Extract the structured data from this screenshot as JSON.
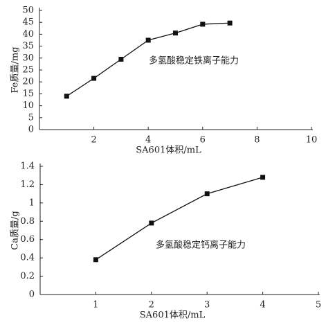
{
  "chart_data": [
    {
      "type": "line",
      "x_label": "SA601体积/mL",
      "y_label": "Fe质量/mg",
      "annotation": "多氢酸稳定铁离子能力",
      "x": [
        1,
        2,
        3,
        4,
        5,
        6,
        7
      ],
      "values": [
        14,
        21.5,
        29.5,
        37.5,
        40.5,
        44.2,
        44.7
      ],
      "color": "#111111",
      "xlim": [
        0,
        10
      ],
      "xticks": [
        2,
        4,
        6,
        8,
        10
      ],
      "ylim": [
        0,
        50
      ],
      "yticks": [
        0,
        5,
        10,
        15,
        20,
        25,
        30,
        35,
        40,
        45,
        50
      ]
    },
    {
      "type": "line",
      "x_label": "SA601体积/mL",
      "y_label": "Ca质量/g",
      "annotation": "多氢酸稳定钙离子能力",
      "x": [
        1,
        2,
        3,
        4
      ],
      "values": [
        0.38,
        0.78,
        1.1,
        1.28
      ],
      "color": "#111111",
      "xlim": [
        0,
        5
      ],
      "xticks": [
        1,
        2,
        3,
        4,
        5
      ],
      "ylim": [
        0,
        1.4
      ],
      "yticks": [
        0,
        0.2,
        0.4,
        0.6,
        0.8,
        1,
        1.2,
        1.4
      ]
    }
  ]
}
